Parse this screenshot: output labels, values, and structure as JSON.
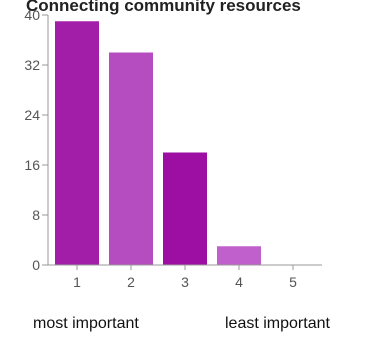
{
  "chart_data": {
    "type": "bar",
    "title": "Connecting community resources",
    "categories": [
      "1",
      "2",
      "3",
      "4",
      "5"
    ],
    "values": [
      39,
      34,
      18,
      3,
      0
    ],
    "bar_colors": [
      "#a31ea8",
      "#b54cc0",
      "#9d0ea3",
      "#c060cc",
      "#c87bd1"
    ],
    "ylim": [
      0,
      40
    ],
    "yticks": [
      0,
      8,
      16,
      24,
      32,
      40
    ],
    "grid": false,
    "axis_color": "#999999"
  },
  "captions": {
    "left": "most important",
    "right": "least important"
  }
}
